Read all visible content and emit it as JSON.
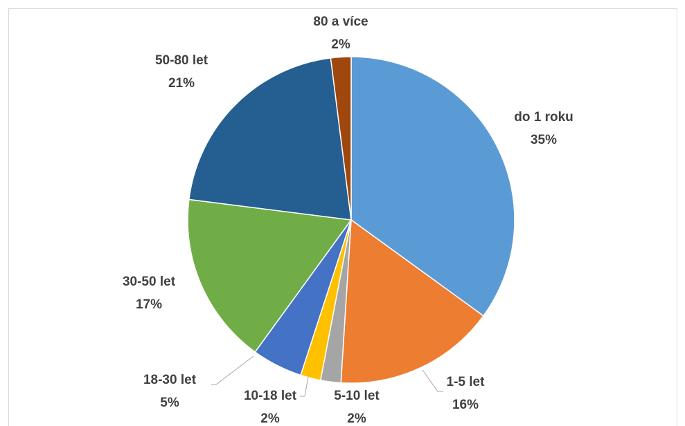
{
  "chart_data": {
    "type": "pie",
    "categories": [
      "do 1 roku",
      "1-5 let",
      "5-10 let",
      "10-18 let",
      "18-30 let",
      "30-50 let",
      "50-80 let",
      "80 a více"
    ],
    "values": [
      35,
      16,
      2,
      2,
      5,
      17,
      21,
      2
    ],
    "value_labels": [
      "35%",
      "16%",
      "2%",
      "2%",
      "5%",
      "17%",
      "21%",
      "2%"
    ],
    "colors": [
      "#5b9bd5",
      "#ed7d31",
      "#a5a5a5",
      "#ffc000",
      "#4472c4",
      "#70ad47",
      "#255e91",
      "#9e480e"
    ]
  }
}
